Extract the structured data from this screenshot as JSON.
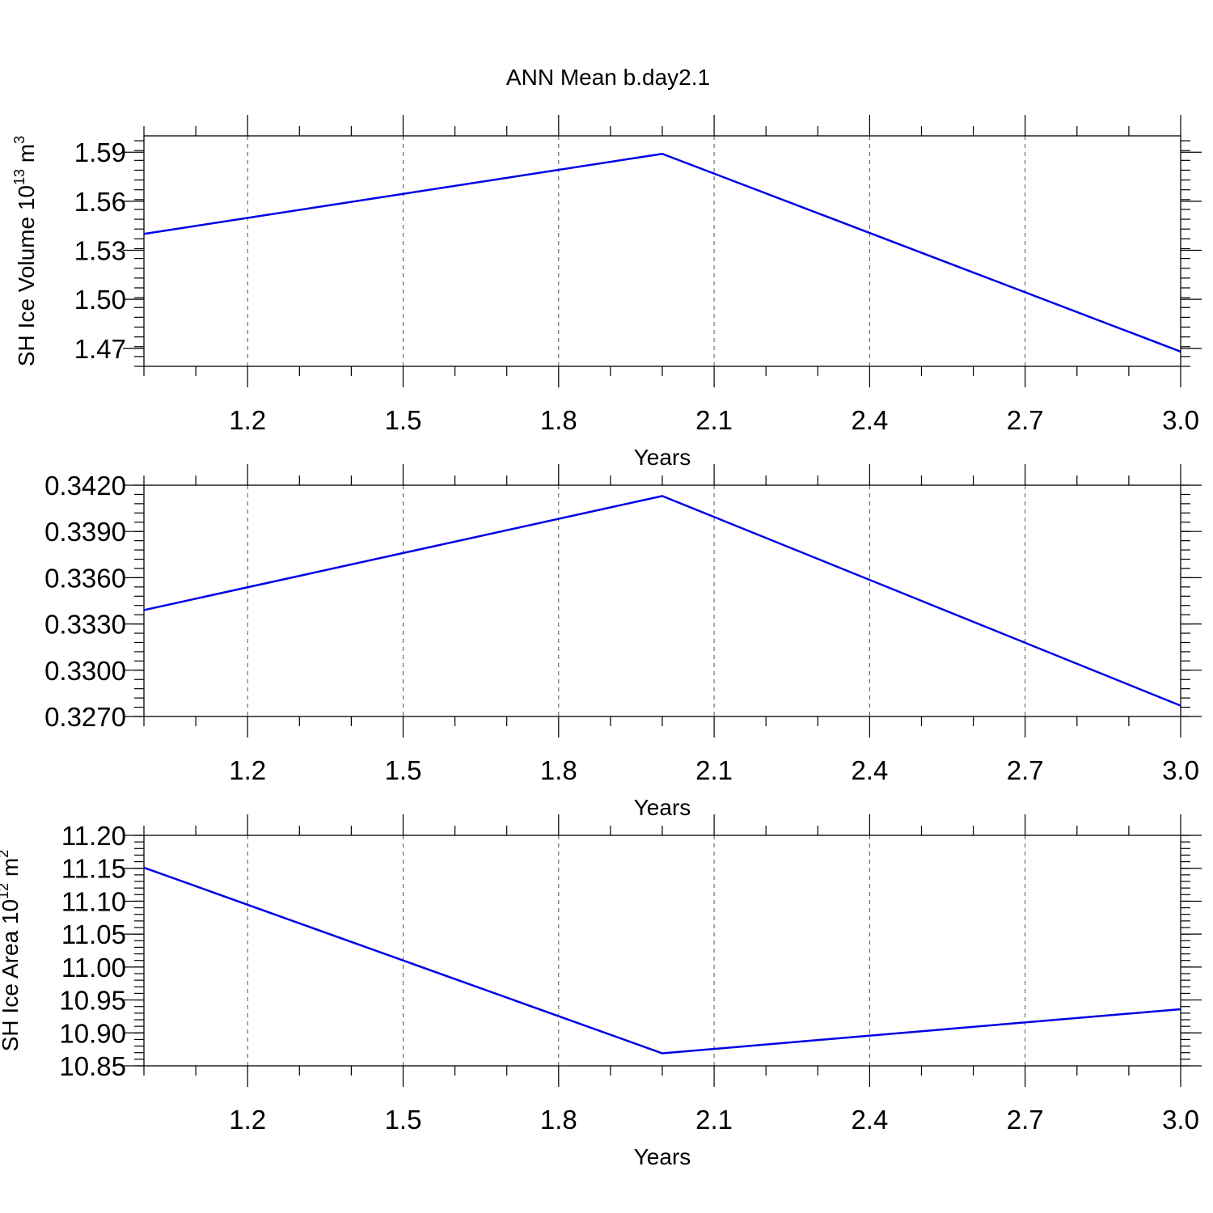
{
  "title": "ANN Mean b.day2.1",
  "colors": {
    "series": "#0000e6",
    "axes": "#000000",
    "grid": "#555555"
  },
  "chart_data": [
    {
      "type": "line",
      "title": "",
      "xlabel": "Years",
      "ylabel": "SH Ice Volume 10",
      "ylabel_exp": "13",
      "ylabel_unit": " m",
      "ylabel_unit_exp": "3",
      "xlim": [
        1.0,
        3.0
      ],
      "ylim": [
        1.459,
        1.6
      ],
      "xticks": [
        1.2,
        1.5,
        1.8,
        2.1,
        2.4,
        2.7,
        3.0
      ],
      "xtick_labels": [
        "1.2",
        "1.5",
        "1.8",
        "2.1",
        "2.4",
        "2.7",
        "3.0"
      ],
      "yticks": [
        1.47,
        1.5,
        1.53,
        1.56,
        1.59
      ],
      "ytick_labels": [
        "1.47",
        "1.50",
        "1.53",
        "1.56",
        "1.59"
      ],
      "y_minor_step": 0.006,
      "grid": true,
      "series": [
        {
          "x": [
            1,
            2,
            3
          ],
          "y": [
            1.54,
            1.589,
            1.468
          ]
        }
      ]
    },
    {
      "type": "line",
      "title": "",
      "xlabel": "Years",
      "ylabel": "",
      "xlim": [
        1.0,
        3.0
      ],
      "ylim": [
        0.327,
        0.342
      ],
      "xticks": [
        1.2,
        1.5,
        1.8,
        2.1,
        2.4,
        2.7,
        3.0
      ],
      "xtick_labels": [
        "1.2",
        "1.5",
        "1.8",
        "2.1",
        "2.4",
        "2.7",
        "3.0"
      ],
      "yticks": [
        0.327,
        0.33,
        0.333,
        0.336,
        0.339,
        0.342
      ],
      "ytick_labels": [
        "0.3270",
        "0.3300",
        "0.3330",
        "0.3360",
        "0.3390",
        "0.3420"
      ],
      "y_minor_step": 0.0006,
      "grid": true,
      "series": [
        {
          "x": [
            1,
            2,
            3
          ],
          "y": [
            0.3339,
            0.3413,
            0.3277
          ]
        }
      ]
    },
    {
      "type": "line",
      "title": "",
      "xlabel": "Years",
      "ylabel": "SH Ice Area 10",
      "ylabel_exp": "12",
      "ylabel_unit": " m",
      "ylabel_unit_exp": "2",
      "xlim": [
        1.0,
        3.0
      ],
      "ylim": [
        10.85,
        11.2
      ],
      "xticks": [
        1.2,
        1.5,
        1.8,
        2.1,
        2.4,
        2.7,
        3.0
      ],
      "xtick_labels": [
        "1.2",
        "1.5",
        "1.8",
        "2.1",
        "2.4",
        "2.7",
        "3.0"
      ],
      "yticks": [
        10.85,
        10.9,
        10.95,
        11.0,
        11.05,
        11.1,
        11.15,
        11.2
      ],
      "ytick_labels": [
        "10.85",
        "10.90",
        "10.95",
        "11.00",
        "11.05",
        "11.10",
        "11.15",
        "11.20"
      ],
      "y_minor_step": 0.01,
      "grid": true,
      "series": [
        {
          "x": [
            1,
            2,
            3
          ],
          "y": [
            11.151,
            10.869,
            10.936
          ]
        }
      ]
    }
  ]
}
